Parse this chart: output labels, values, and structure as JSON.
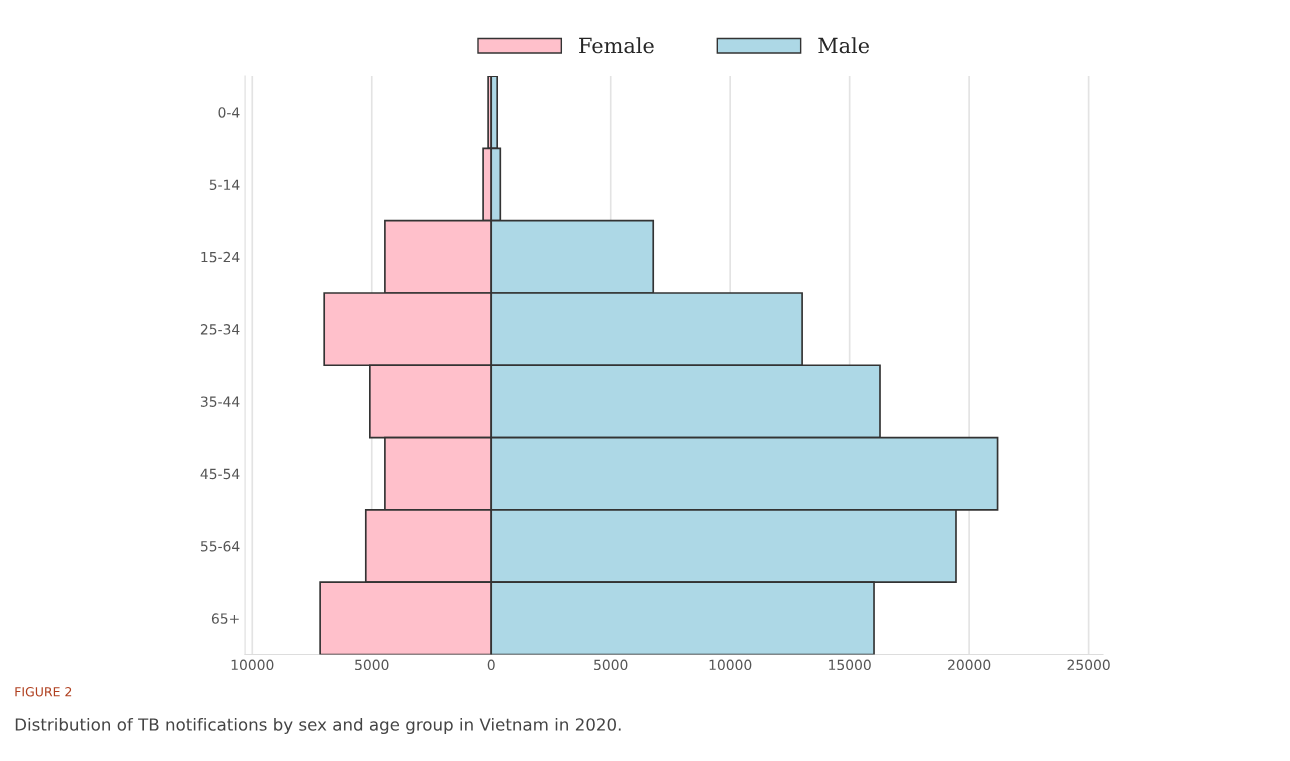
{
  "chart_data": {
    "type": "bar",
    "orientation": "horizontal",
    "stacked": true,
    "categories": [
      "0-4",
      "5-14",
      "15-24",
      "25-34",
      "35-44",
      "45-54",
      "55-64",
      "65+"
    ],
    "series": [
      {
        "name": "Female",
        "color": "#ffc0cb",
        "values": [
          -130,
          -340,
          -4450,
          -6990,
          -5080,
          -4450,
          -5250,
          -7160
        ]
      },
      {
        "name": "Male",
        "color": "#add8e6",
        "values": [
          250,
          380,
          6780,
          13010,
          16270,
          21190,
          19450,
          16020
        ]
      }
    ],
    "xlim": [
      -10300,
      25600
    ],
    "xticks": [
      {
        "value": -10000,
        "label": "10000"
      },
      {
        "value": -5000,
        "label": "5000"
      },
      0,
      5000,
      10000,
      15000,
      20000,
      25000
    ],
    "grid": "x",
    "legend": "top",
    "annotations": [
      "FIGURE 2",
      "Distribution of TB notifications by sex and age group in Vietnam in 2020."
    ]
  }
}
